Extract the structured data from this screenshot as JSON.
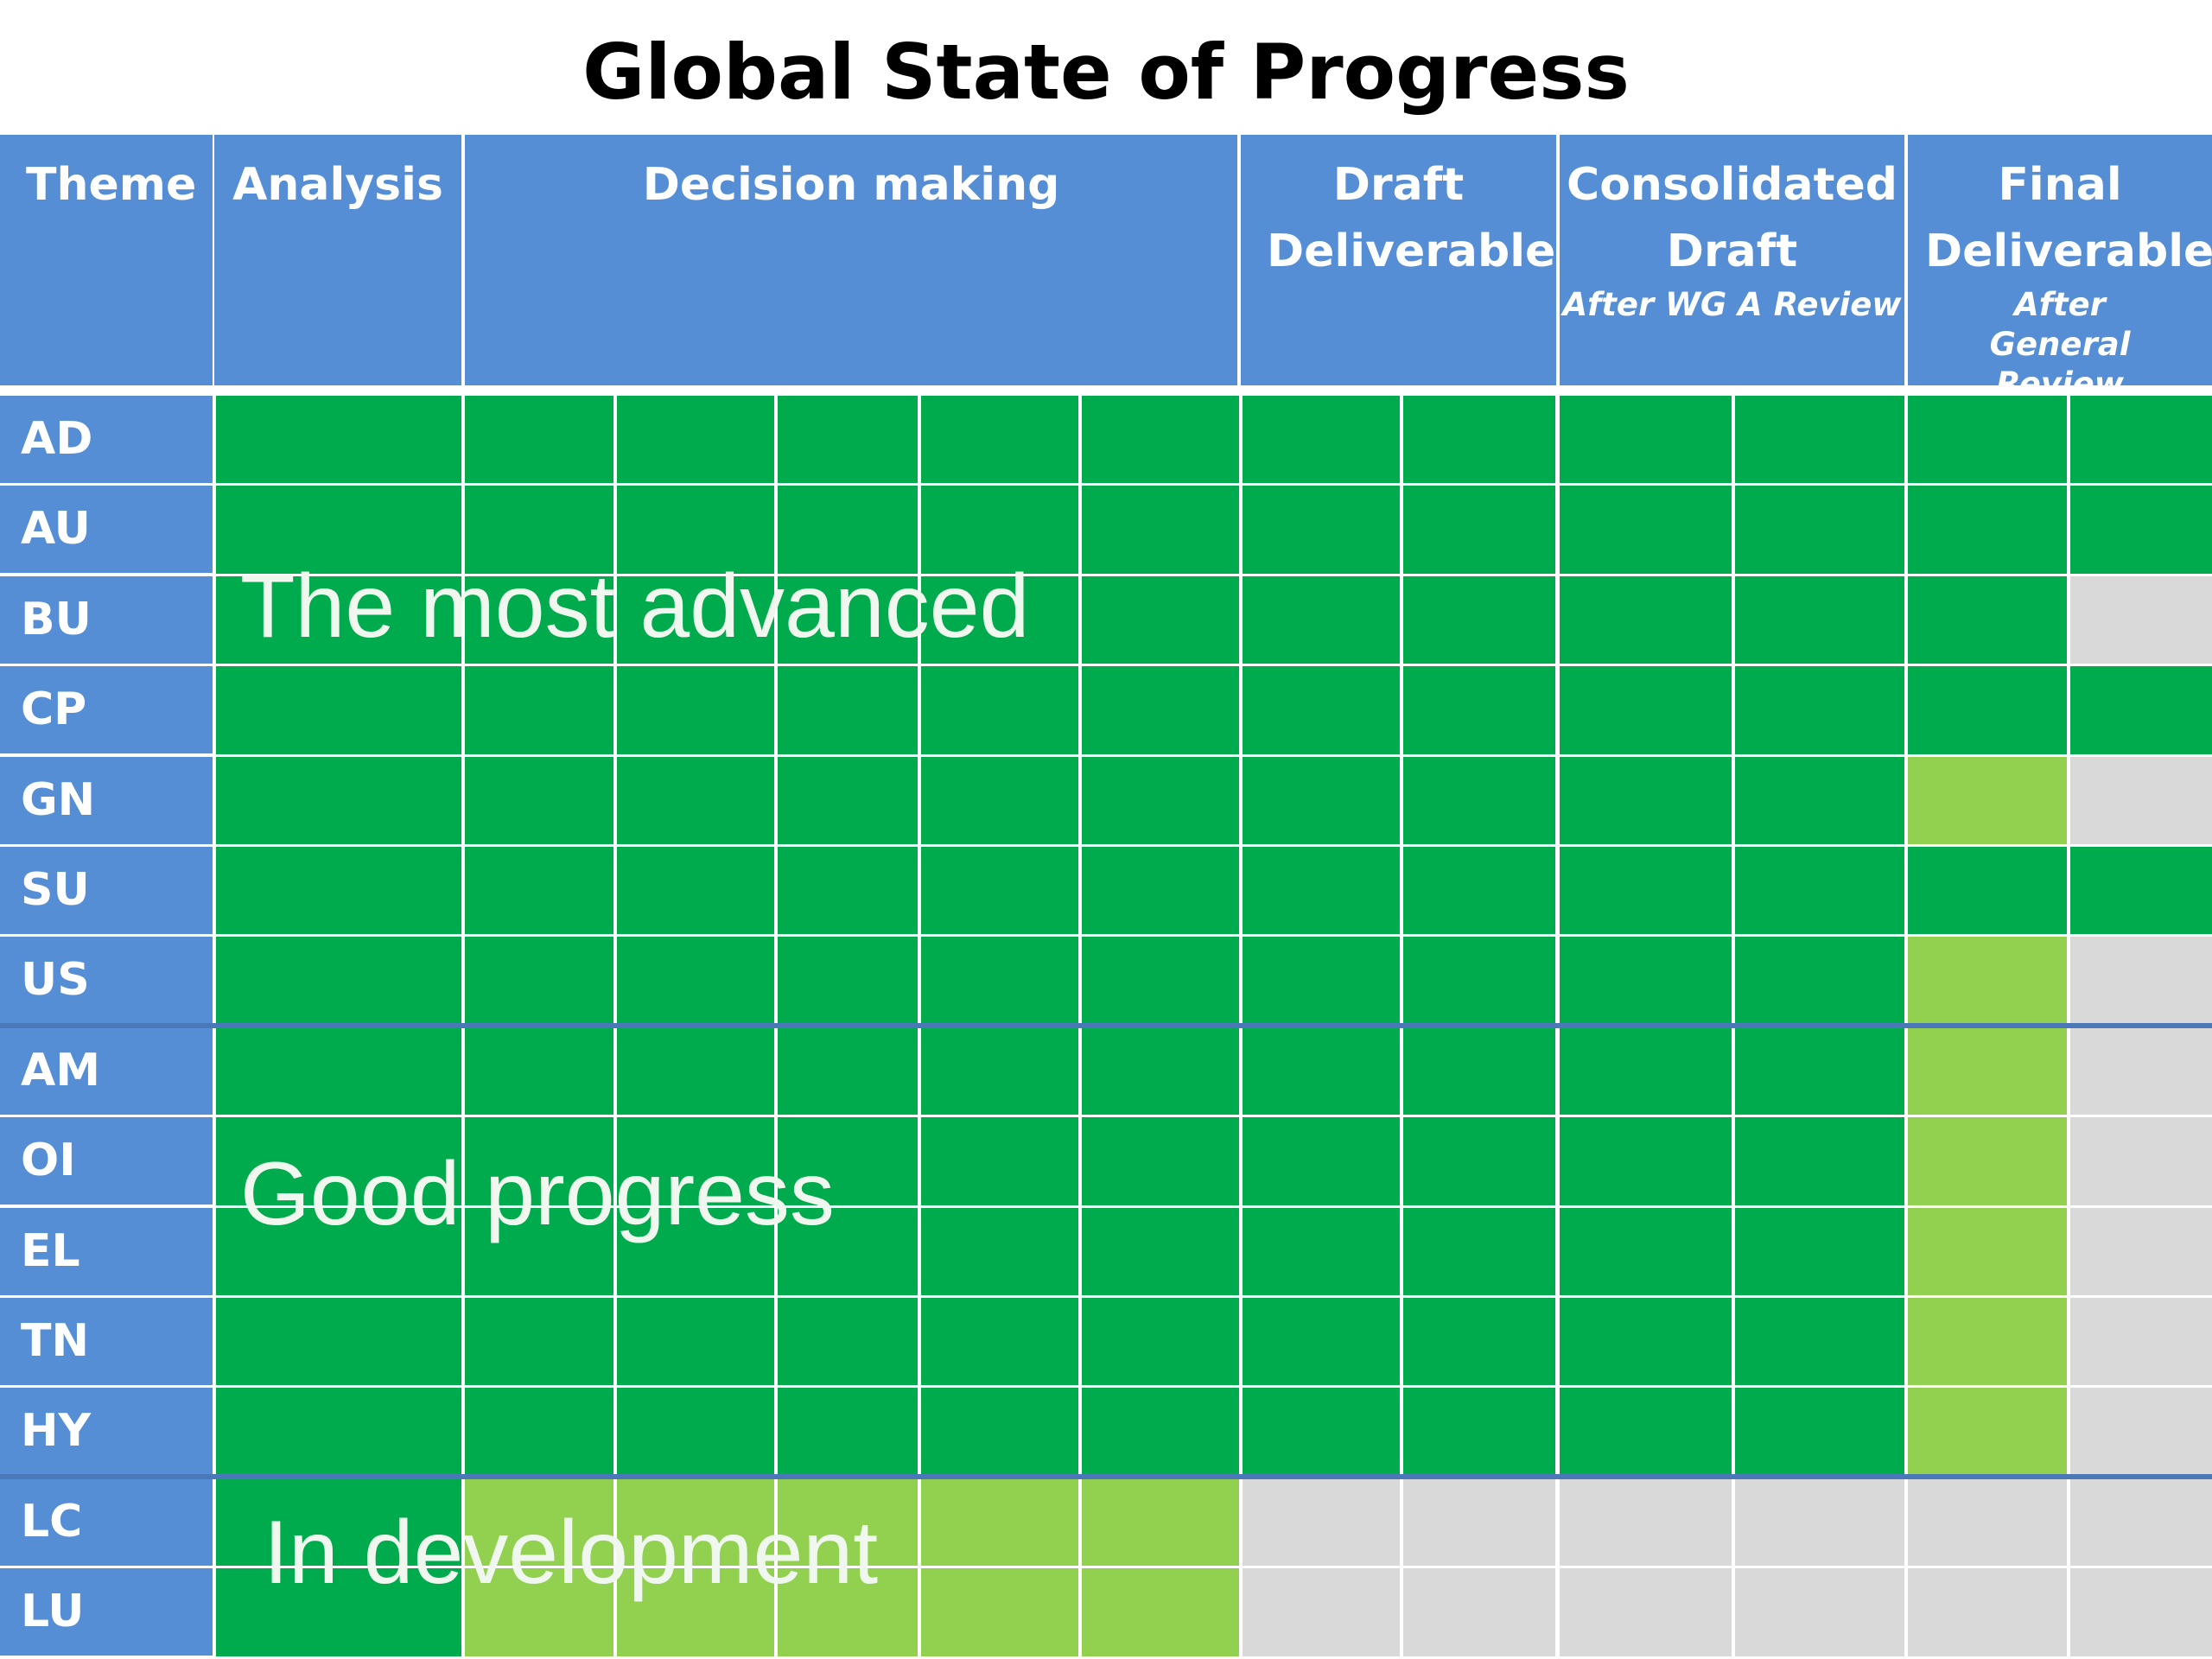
{
  "chart_data": {
    "type": "table",
    "title": "Global State of Progress",
    "columns": [
      {
        "label": "Theme",
        "subtitle": "",
        "span": 1
      },
      {
        "label": "Analysis",
        "subtitle": "",
        "span": 1
      },
      {
        "label": "Decision making",
        "subtitle": "",
        "span": 5
      },
      {
        "label": "Draft Deliverable",
        "subtitle": "",
        "span": 2
      },
      {
        "label": "Consolidated Draft",
        "subtitle": "After WG A Review",
        "span": 2
      },
      {
        "label": "Final Deliverable",
        "subtitle": "After General Review",
        "span": 2
      }
    ],
    "status_legend": {
      "done": "#00ab4e",
      "in_progress": "#92d050",
      "not_started": "#d9d9d9"
    },
    "rows": [
      {
        "theme": "AD",
        "status": [
          "done",
          "done",
          "done",
          "done",
          "done",
          "done",
          "done",
          "done",
          "done",
          "done",
          "done",
          "done",
          "done"
        ]
      },
      {
        "theme": "AU",
        "status": [
          "done",
          "done",
          "done",
          "done",
          "done",
          "done",
          "done",
          "done",
          "done",
          "done",
          "done",
          "done",
          "done"
        ]
      },
      {
        "theme": "BU",
        "status": [
          "done",
          "done",
          "done",
          "done",
          "done",
          "done",
          "done",
          "done",
          "done",
          "done",
          "done",
          "done",
          "not_started"
        ]
      },
      {
        "theme": "CP",
        "status": [
          "done",
          "done",
          "done",
          "done",
          "done",
          "done",
          "done",
          "done",
          "done",
          "done",
          "done",
          "done",
          "done"
        ]
      },
      {
        "theme": "GN",
        "status": [
          "done",
          "done",
          "done",
          "done",
          "done",
          "done",
          "done",
          "done",
          "done",
          "done",
          "done",
          "in_progress",
          "not_started"
        ]
      },
      {
        "theme": "SU",
        "status": [
          "done",
          "done",
          "done",
          "done",
          "done",
          "done",
          "done",
          "done",
          "done",
          "done",
          "done",
          "done",
          "done"
        ]
      },
      {
        "theme": "US",
        "status": [
          "done",
          "done",
          "done",
          "done",
          "done",
          "done",
          "done",
          "done",
          "done",
          "done",
          "done",
          "in_progress",
          "not_started"
        ]
      },
      {
        "theme": "AM",
        "status": [
          "done",
          "done",
          "done",
          "done",
          "done",
          "done",
          "done",
          "done",
          "done",
          "done",
          "done",
          "in_progress",
          "not_started"
        ]
      },
      {
        "theme": "OI",
        "status": [
          "done",
          "done",
          "done",
          "done",
          "done",
          "done",
          "done",
          "done",
          "done",
          "done",
          "done",
          "in_progress",
          "not_started"
        ]
      },
      {
        "theme": "EL",
        "status": [
          "done",
          "done",
          "done",
          "done",
          "done",
          "done",
          "done",
          "done",
          "done",
          "done",
          "done",
          "in_progress",
          "not_started"
        ]
      },
      {
        "theme": "TN",
        "status": [
          "done",
          "done",
          "done",
          "done",
          "done",
          "done",
          "done",
          "done",
          "done",
          "done",
          "done",
          "in_progress",
          "not_started"
        ]
      },
      {
        "theme": "HY",
        "status": [
          "done",
          "done",
          "done",
          "done",
          "done",
          "done",
          "done",
          "done",
          "done",
          "done",
          "done",
          "in_progress",
          "not_started"
        ]
      },
      {
        "theme": "LC",
        "status": [
          "done",
          "in_progress",
          "in_progress",
          "in_progress",
          "in_progress",
          "in_progress",
          "not_started",
          "not_started",
          "not_started",
          "not_started",
          "not_started",
          "not_started",
          "not_started"
        ]
      },
      {
        "theme": "LU",
        "status": [
          "done",
          "in_progress",
          "in_progress",
          "in_progress",
          "in_progress",
          "in_progress",
          "not_started",
          "not_started",
          "not_started",
          "not_started",
          "not_started",
          "not_started",
          "not_started"
        ]
      }
    ],
    "groups": [
      {
        "label": "The most advanced",
        "rows": [
          "AD",
          "AU",
          "BU",
          "CP",
          "GN",
          "SU",
          "US"
        ]
      },
      {
        "label": "Good progress",
        "rows": [
          "AM",
          "OI",
          "EL",
          "TN",
          "HY"
        ]
      },
      {
        "label": "In development",
        "rows": [
          "LC",
          "LU"
        ]
      }
    ]
  }
}
